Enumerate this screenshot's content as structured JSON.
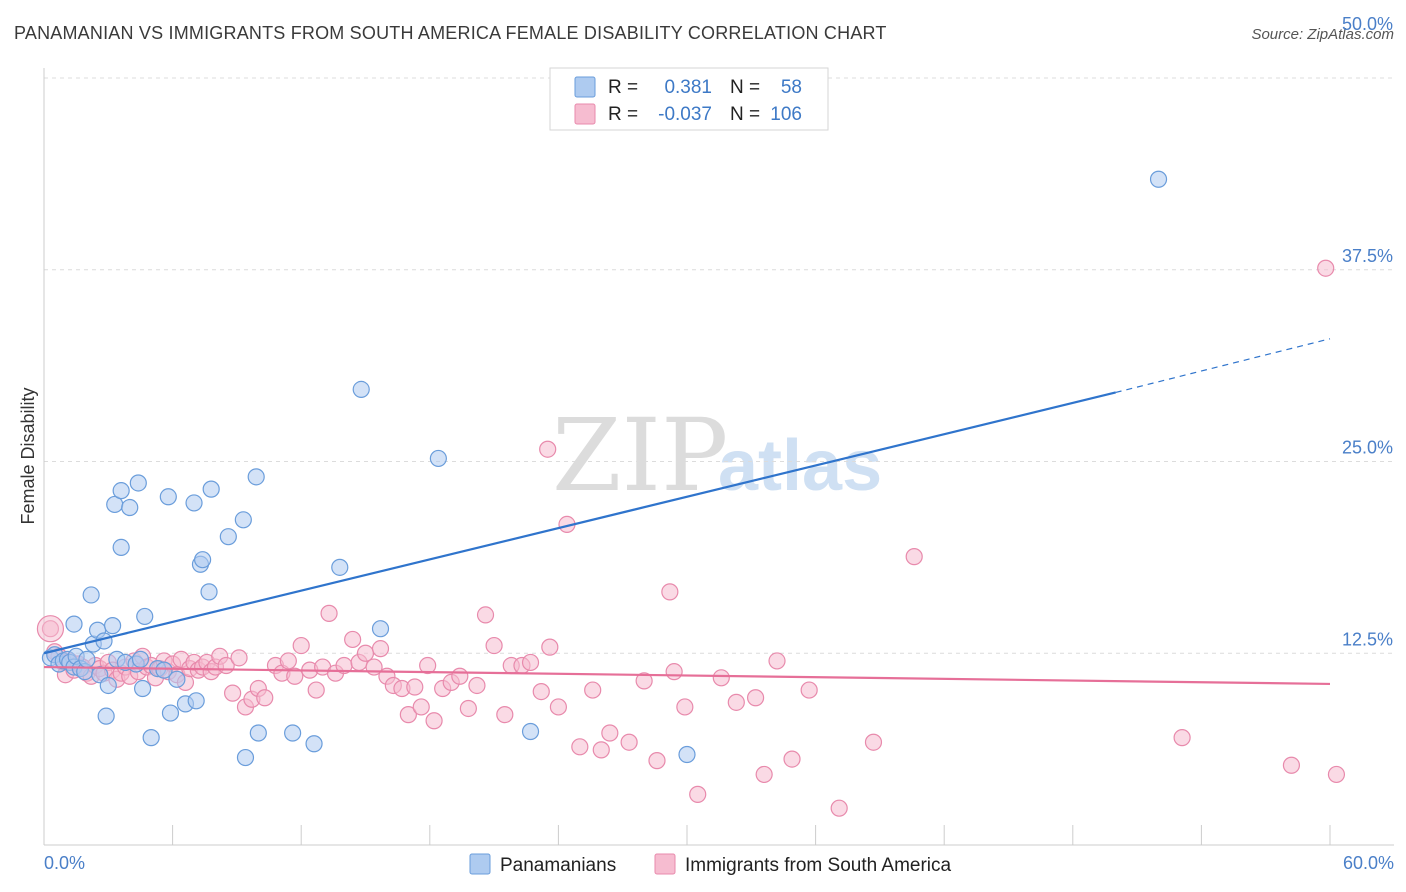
{
  "title": "PANAMANIAN VS IMMIGRANTS FROM SOUTH AMERICA FEMALE DISABILITY CORRELATION CHART",
  "source": "Source: ZipAtlas.com",
  "watermark": {
    "zip": "ZIP",
    "atlas": "atlas"
  },
  "legend": {
    "rows": [
      {
        "r_label": "R =",
        "r_value": "0.381",
        "n_label": "N =",
        "n_value": "58"
      },
      {
        "r_label": "R =",
        "r_value": "-0.037",
        "n_label": "N =",
        "n_value": "106"
      }
    ]
  },
  "bottom_legend": [
    "Panamanians",
    "Immigrants from South America"
  ],
  "colors": {
    "blue_fill": "#aecbf0",
    "blue_stroke": "#6a9ddb",
    "blue_line": "#2f74cc",
    "pink_fill": "#f6bcd0",
    "pink_stroke": "#e88aac",
    "pink_line": "#e66f98",
    "grid": "#dcdcdc",
    "tick_text": "#4a7fc8"
  },
  "chart_data": {
    "type": "scatter",
    "title": "PANAMANIAN VS IMMIGRANTS FROM SOUTH AMERICA FEMALE DISABILITY CORRELATION CHART",
    "xlabel": "",
    "ylabel": "Female Disability",
    "xlim": [
      0,
      60
    ],
    "ylim": [
      0,
      50
    ],
    "x_tick_labels": [
      "0.0%",
      "60.0%"
    ],
    "y_ticks": [
      12.5,
      25.0,
      37.5,
      50.0
    ],
    "y_tick_labels": [
      "12.5%",
      "25.0%",
      "37.5%",
      "50.0%"
    ],
    "grid": true,
    "series": [
      {
        "name": "Panamanians",
        "r": 0.381,
        "n": 58,
        "trend": {
          "x0": 0,
          "y0": 12.5,
          "x1": 50,
          "y1": 29.5,
          "dash_to_x": 60,
          "dash_to_y": 33.0
        },
        "points": [
          [
            0.3,
            12.2
          ],
          [
            0.5,
            12.4
          ],
          [
            0.7,
            11.8
          ],
          [
            0.9,
            12.0
          ],
          [
            1.1,
            12.1
          ],
          [
            1.2,
            11.9
          ],
          [
            1.4,
            11.6
          ],
          [
            1.5,
            12.3
          ],
          [
            1.7,
            11.5
          ],
          [
            1.9,
            11.3
          ],
          [
            1.4,
            14.4
          ],
          [
            2.0,
            12.1
          ],
          [
            2.2,
            16.3
          ],
          [
            2.3,
            13.1
          ],
          [
            2.5,
            14.0
          ],
          [
            2.6,
            11.1
          ],
          [
            2.8,
            13.3
          ],
          [
            2.9,
            8.4
          ],
          [
            3.0,
            10.4
          ],
          [
            3.2,
            14.3
          ],
          [
            3.4,
            12.1
          ],
          [
            3.3,
            22.2
          ],
          [
            3.6,
            23.1
          ],
          [
            3.6,
            19.4
          ],
          [
            3.8,
            11.9
          ],
          [
            4.0,
            22.0
          ],
          [
            4.3,
            11.8
          ],
          [
            4.4,
            23.6
          ],
          [
            4.5,
            12.1
          ],
          [
            4.6,
            10.2
          ],
          [
            4.7,
            14.9
          ],
          [
            5.0,
            7.0
          ],
          [
            5.3,
            11.5
          ],
          [
            5.6,
            11.4
          ],
          [
            5.8,
            22.7
          ],
          [
            5.9,
            8.6
          ],
          [
            6.2,
            10.8
          ],
          [
            6.6,
            9.2
          ],
          [
            7.0,
            22.3
          ],
          [
            7.1,
            9.4
          ],
          [
            7.3,
            18.3
          ],
          [
            7.4,
            18.6
          ],
          [
            7.7,
            16.5
          ],
          [
            7.8,
            23.2
          ],
          [
            8.6,
            20.1
          ],
          [
            9.3,
            21.2
          ],
          [
            9.4,
            5.7
          ],
          [
            9.9,
            24.0
          ],
          [
            10.0,
            7.3
          ],
          [
            11.6,
            7.3
          ],
          [
            12.6,
            6.6
          ],
          [
            13.8,
            18.1
          ],
          [
            14.8,
            29.7
          ],
          [
            15.7,
            14.1
          ],
          [
            18.4,
            25.2
          ],
          [
            22.7,
            7.4
          ],
          [
            30.0,
            5.9
          ],
          [
            52.0,
            43.4
          ]
        ]
      },
      {
        "name": "Immigrants from South America",
        "r": -0.037,
        "n": 106,
        "trend": {
          "x0": 0,
          "y0": 11.6,
          "x1": 60,
          "y1": 10.5
        },
        "points": [
          [
            0.3,
            14.1
          ],
          [
            0.5,
            12.6
          ],
          [
            0.7,
            12.3
          ],
          [
            0.9,
            11.9
          ],
          [
            1.0,
            11.1
          ],
          [
            1.2,
            12.0
          ],
          [
            1.4,
            11.4
          ],
          [
            1.6,
            11.8
          ],
          [
            1.8,
            11.6
          ],
          [
            2.0,
            11.2
          ],
          [
            2.2,
            11.0
          ],
          [
            2.4,
            11.7
          ],
          [
            2.6,
            11.5
          ],
          [
            2.8,
            11.2
          ],
          [
            3.0,
            11.9
          ],
          [
            3.2,
            11.4
          ],
          [
            3.4,
            10.8
          ],
          [
            3.6,
            11.2
          ],
          [
            3.8,
            11.6
          ],
          [
            4.0,
            11.0
          ],
          [
            4.2,
            12.0
          ],
          [
            4.4,
            11.3
          ],
          [
            4.6,
            12.3
          ],
          [
            4.8,
            11.6
          ],
          [
            5.0,
            11.7
          ],
          [
            5.2,
            10.9
          ],
          [
            5.4,
            11.5
          ],
          [
            5.6,
            12.0
          ],
          [
            5.8,
            11.3
          ],
          [
            6.0,
            11.8
          ],
          [
            6.2,
            11.1
          ],
          [
            6.4,
            12.1
          ],
          [
            6.6,
            10.6
          ],
          [
            6.8,
            11.5
          ],
          [
            7.0,
            11.9
          ],
          [
            7.2,
            11.4
          ],
          [
            7.4,
            11.6
          ],
          [
            7.6,
            11.9
          ],
          [
            7.8,
            11.3
          ],
          [
            8.0,
            11.6
          ],
          [
            8.2,
            12.3
          ],
          [
            8.5,
            11.7
          ],
          [
            8.8,
            9.9
          ],
          [
            9.1,
            12.2
          ],
          [
            9.4,
            9.0
          ],
          [
            9.7,
            9.5
          ],
          [
            10.0,
            10.2
          ],
          [
            10.3,
            9.6
          ],
          [
            10.8,
            11.7
          ],
          [
            11.1,
            11.2
          ],
          [
            11.4,
            12.0
          ],
          [
            11.7,
            11.0
          ],
          [
            12.0,
            13.0
          ],
          [
            12.4,
            11.4
          ],
          [
            12.7,
            10.1
          ],
          [
            13.0,
            11.6
          ],
          [
            13.3,
            15.1
          ],
          [
            13.6,
            11.2
          ],
          [
            14.0,
            11.7
          ],
          [
            14.4,
            13.4
          ],
          [
            14.7,
            11.9
          ],
          [
            15.0,
            12.5
          ],
          [
            15.4,
            11.6
          ],
          [
            15.7,
            12.8
          ],
          [
            16.0,
            11.0
          ],
          [
            16.3,
            10.4
          ],
          [
            16.7,
            10.2
          ],
          [
            17.0,
            8.5
          ],
          [
            17.3,
            10.3
          ],
          [
            17.6,
            9.0
          ],
          [
            17.9,
            11.7
          ],
          [
            18.2,
            8.1
          ],
          [
            18.6,
            10.2
          ],
          [
            19.0,
            10.6
          ],
          [
            19.4,
            11.0
          ],
          [
            19.8,
            8.9
          ],
          [
            20.2,
            10.4
          ],
          [
            20.6,
            15.0
          ],
          [
            21.0,
            13.0
          ],
          [
            21.5,
            8.5
          ],
          [
            21.8,
            11.7
          ],
          [
            22.3,
            11.7
          ],
          [
            22.7,
            11.9
          ],
          [
            23.2,
            10.0
          ],
          [
            23.6,
            12.9
          ],
          [
            24.0,
            9.0
          ],
          [
            24.4,
            20.9
          ],
          [
            25.0,
            6.4
          ],
          [
            25.6,
            10.1
          ],
          [
            26.0,
            6.2
          ],
          [
            26.4,
            7.3
          ],
          [
            27.3,
            6.7
          ],
          [
            28.0,
            10.7
          ],
          [
            28.6,
            5.5
          ],
          [
            29.2,
            16.5
          ],
          [
            29.4,
            11.3
          ],
          [
            29.9,
            9.0
          ],
          [
            30.5,
            3.3
          ],
          [
            31.6,
            10.9
          ],
          [
            32.3,
            9.3
          ],
          [
            33.2,
            9.6
          ],
          [
            33.6,
            4.6
          ],
          [
            34.2,
            12.0
          ],
          [
            35.7,
            10.1
          ],
          [
            40.6,
            18.8
          ],
          [
            38.7,
            6.7
          ]
        ]
      }
    ],
    "extra_pink_points": [
      [
        23.5,
        25.8
      ],
      [
        34.9,
        5.6
      ],
      [
        37.1,
        2.4
      ],
      [
        53.1,
        7.0
      ],
      [
        59.8,
        37.6
      ],
      [
        58.2,
        5.2
      ],
      [
        60.3,
        4.6
      ]
    ]
  }
}
